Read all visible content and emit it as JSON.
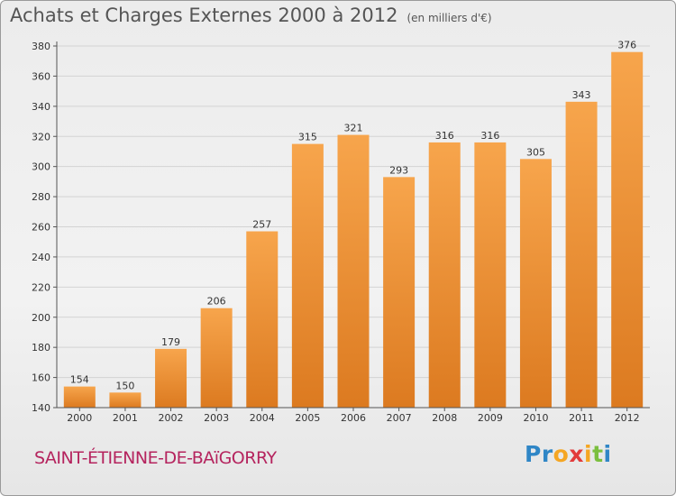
{
  "header": {
    "title": "Achats et Charges Externes 2000 à 2012",
    "unit": "(en milliers d'€)"
  },
  "footer": {
    "commune": "SAINT-ÉTIENNE-DE-BAïGORRY",
    "logo_letters": [
      "P",
      "r",
      "o",
      "x",
      "i",
      "t",
      "i"
    ],
    "logo_colors": [
      "#2f86c6",
      "#2f86c6",
      "#f5a623",
      "#e23b3b",
      "#f5a623",
      "#7bbf3e",
      "#2f86c6"
    ]
  },
  "colors": {
    "bar_light": "#f7a54c",
    "bar_dark": "#dc7a20",
    "grid": "#d3d3d3",
    "axis": "#555555"
  },
  "chart_data": {
    "type": "bar",
    "categories": [
      "2000",
      "2001",
      "2002",
      "2003",
      "2004",
      "2005",
      "2006",
      "2007",
      "2008",
      "2009",
      "2010",
      "2011",
      "2012"
    ],
    "values": [
      154,
      150,
      179,
      206,
      257,
      315,
      321,
      293,
      316,
      316,
      305,
      343,
      376
    ],
    "ylim": [
      140,
      380
    ],
    "yticks": [
      140,
      160,
      180,
      200,
      220,
      240,
      260,
      280,
      300,
      320,
      340,
      360,
      380
    ],
    "grid": true,
    "data_labels": true
  }
}
